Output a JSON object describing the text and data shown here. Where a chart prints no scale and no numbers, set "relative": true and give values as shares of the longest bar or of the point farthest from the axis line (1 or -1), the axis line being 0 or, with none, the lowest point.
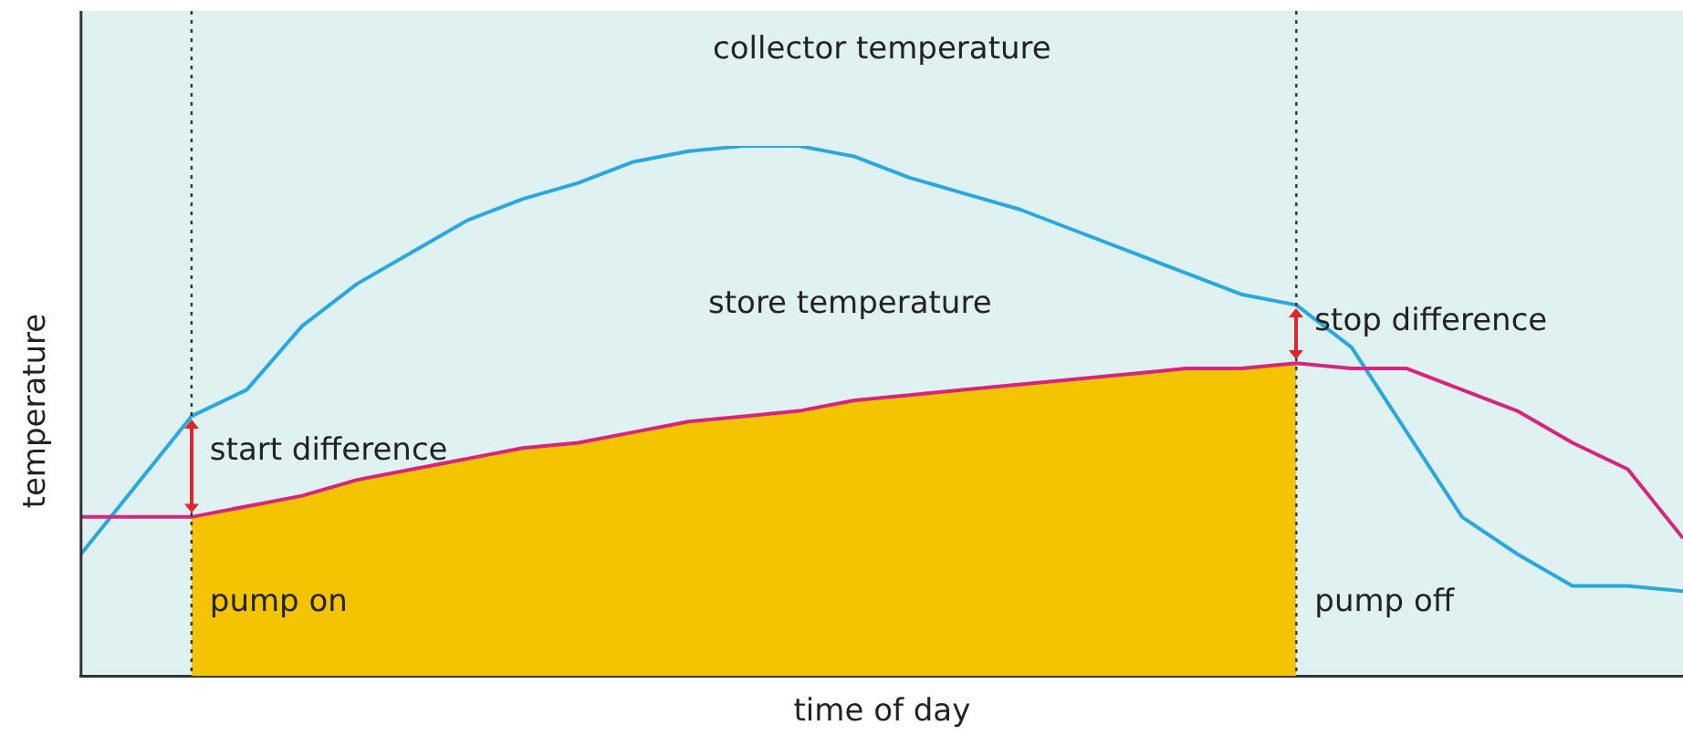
{
  "chart_data": {
    "type": "line",
    "relative": true,
    "xlabel": "time of day",
    "ylabel": "temperature",
    "legend": false,
    "grid": false,
    "marker": "none",
    "categories": [
      null,
      null,
      null,
      null,
      null,
      null,
      null,
      null,
      null,
      null,
      null,
      null,
      null,
      null,
      null,
      null,
      null,
      null,
      null,
      null,
      null,
      null,
      null,
      null,
      null,
      null,
      null,
      null,
      null,
      null
    ],
    "series": [
      {
        "type": "area",
        "color": "#f5c400",
        "values": [
          null,
          null,
          0.3,
          0.32,
          0.34,
          0.37,
          0.39,
          0.41,
          0.43,
          0.44,
          0.46,
          0.48,
          0.49,
          0.5,
          0.52,
          0.53,
          0.54,
          0.55,
          0.56,
          0.57,
          0.58,
          0.58,
          0.59,
          null,
          null,
          null,
          null,
          null,
          null,
          null
        ]
      },
      {
        "name": "collector temperature",
        "color": "#29a8e0",
        "values": [
          0.23,
          0.36,
          0.49,
          0.54,
          0.66,
          0.74,
          0.8,
          0.86,
          0.9,
          0.93,
          0.97,
          0.99,
          1,
          1,
          0.98,
          0.94,
          0.91,
          0.88,
          0.84,
          0.8,
          0.76,
          0.72,
          0.7,
          0.62,
          0.46,
          0.3,
          0.23,
          0.17,
          0.17,
          0.16
        ]
      },
      {
        "name": "store temperature",
        "color": "#d6247f",
        "values": [
          0.3,
          0.3,
          0.3,
          0.32,
          0.34,
          0.37,
          0.39,
          0.41,
          0.43,
          0.44,
          0.46,
          0.48,
          0.49,
          0.5,
          0.52,
          0.53,
          0.54,
          0.55,
          0.56,
          0.57,
          0.58,
          0.58,
          0.59,
          0.58,
          0.58,
          0.54,
          0.5,
          0.44,
          0.39,
          0.26
        ]
      }
    ],
    "annotations": [
      "start difference",
      "stop difference",
      "pump on",
      "pump off"
    ]
  }
}
